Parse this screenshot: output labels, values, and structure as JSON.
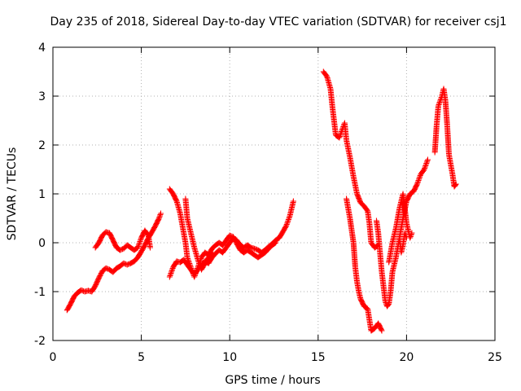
{
  "chart_data": {
    "type": "scatter",
    "title": "Day 235 of 2018, Sidereal Day-to-day VTEC variation (SDTVAR) for receiver csj1",
    "xlabel": "GPS time / hours",
    "ylabel": "SDTVAR / TECUs",
    "xlim": [
      0,
      25
    ],
    "ylim": [
      -2,
      4
    ],
    "xticks": [
      0,
      5,
      10,
      15,
      20,
      25
    ],
    "yticks": [
      -2,
      -1,
      0,
      1,
      2,
      3,
      4
    ],
    "grid": true,
    "marker": "+",
    "series": [
      {
        "name": "SDTVAR",
        "color": "#ff0000",
        "segments": [
          [
            [
              0.8,
              -1.38
            ],
            [
              1.0,
              -1.25
            ],
            [
              1.2,
              -1.1
            ],
            [
              1.4,
              -1.02
            ],
            [
              1.6,
              -0.97
            ],
            [
              1.8,
              -1.0
            ],
            [
              2.0,
              -0.98
            ],
            [
              2.2,
              -1.0
            ],
            [
              2.4,
              -0.88
            ],
            [
              2.6,
              -0.72
            ],
            [
              2.8,
              -0.58
            ],
            [
              3.0,
              -0.52
            ],
            [
              3.2,
              -0.55
            ],
            [
              3.4,
              -0.6
            ],
            [
              3.6,
              -0.52
            ],
            [
              3.8,
              -0.48
            ],
            [
              4.0,
              -0.42
            ],
            [
              4.2,
              -0.45
            ],
            [
              4.4,
              -0.42
            ],
            [
              4.6,
              -0.38
            ],
            [
              4.8,
              -0.3
            ],
            [
              5.0,
              -0.18
            ],
            [
              5.2,
              -0.05
            ],
            [
              5.4,
              0.1
            ],
            [
              5.6,
              0.22
            ],
            [
              5.8,
              0.35
            ],
            [
              6.0,
              0.5
            ],
            [
              6.1,
              0.6
            ]
          ],
          [
            [
              2.4,
              -0.1
            ],
            [
              2.6,
              0.0
            ],
            [
              2.8,
              0.15
            ],
            [
              3.0,
              0.22
            ],
            [
              3.2,
              0.2
            ],
            [
              3.4,
              0.05
            ],
            [
              3.6,
              -0.1
            ],
            [
              3.8,
              -0.15
            ],
            [
              4.0,
              -0.12
            ],
            [
              4.2,
              -0.05
            ],
            [
              4.4,
              -0.1
            ],
            [
              4.6,
              -0.15
            ],
            [
              4.8,
              -0.1
            ],
            [
              5.0,
              0.1
            ],
            [
              5.2,
              0.25
            ],
            [
              5.4,
              0.15
            ],
            [
              5.5,
              -0.1
            ]
          ],
          [
            [
              6.6,
              -0.7
            ],
            [
              6.8,
              -0.5
            ],
            [
              7.0,
              -0.38
            ],
            [
              7.2,
              -0.4
            ],
            [
              7.4,
              -0.35
            ],
            [
              7.6,
              -0.45
            ],
            [
              7.8,
              -0.55
            ],
            [
              8.0,
              -0.65
            ],
            [
              8.2,
              -0.55
            ],
            [
              8.4,
              -0.45
            ],
            [
              8.6,
              -0.38
            ],
            [
              8.8,
              -0.42
            ],
            [
              9.0,
              -0.3
            ],
            [
              9.2,
              -0.22
            ],
            [
              9.4,
              -0.15
            ],
            [
              9.6,
              -0.2
            ],
            [
              9.8,
              -0.1
            ],
            [
              10.0,
              0.0
            ],
            [
              10.2,
              0.1
            ],
            [
              10.4,
              0.05
            ],
            [
              10.6,
              -0.05
            ],
            [
              10.8,
              -0.1
            ],
            [
              11.0,
              -0.05
            ],
            [
              11.2,
              -0.1
            ],
            [
              11.4,
              -0.12
            ],
            [
              11.6,
              -0.15
            ],
            [
              11.8,
              -0.2
            ],
            [
              12.0,
              -0.15
            ],
            [
              12.2,
              -0.08
            ],
            [
              12.4,
              -0.02
            ],
            [
              12.6,
              0.05
            ],
            [
              12.8,
              0.1
            ],
            [
              13.0,
              0.22
            ],
            [
              13.2,
              0.35
            ],
            [
              13.4,
              0.55
            ],
            [
              13.6,
              0.85
            ]
          ],
          [
            [
              6.6,
              1.1
            ],
            [
              6.8,
              1.0
            ],
            [
              7.0,
              0.85
            ],
            [
              7.2,
              0.6
            ],
            [
              7.4,
              0.2
            ],
            [
              7.5,
              0.0
            ],
            [
              7.6,
              -0.3
            ],
            [
              7.8,
              -0.5
            ],
            [
              8.0,
              -0.7
            ],
            [
              8.2,
              -0.5
            ],
            [
              8.4,
              -0.3
            ],
            [
              8.6,
              -0.2
            ],
            [
              8.8,
              -0.25
            ],
            [
              9.0,
              -0.12
            ],
            [
              9.2,
              -0.05
            ],
            [
              9.4,
              0.0
            ],
            [
              9.6,
              -0.05
            ],
            [
              9.8,
              0.05
            ],
            [
              10.0,
              0.15
            ],
            [
              10.2,
              0.12
            ],
            [
              10.4,
              -0.02
            ],
            [
              10.6,
              -0.15
            ],
            [
              10.8,
              -0.2
            ],
            [
              11.0,
              -0.15
            ],
            [
              11.2,
              -0.2
            ],
            [
              11.4,
              -0.25
            ],
            [
              11.6,
              -0.3
            ],
            [
              11.8,
              -0.25
            ],
            [
              12.0,
              -0.2
            ],
            [
              12.2,
              -0.12
            ],
            [
              12.4,
              -0.05
            ],
            [
              12.6,
              0.0
            ]
          ],
          [
            [
              7.5,
              0.9
            ],
            [
              7.6,
              0.5
            ],
            [
              7.8,
              0.2
            ],
            [
              8.0,
              -0.1
            ],
            [
              8.2,
              -0.35
            ],
            [
              8.4,
              -0.55
            ],
            [
              8.6,
              -0.42
            ],
            [
              8.8,
              -0.3
            ],
            [
              9.0,
              -0.2
            ]
          ],
          [
            [
              15.3,
              3.5
            ],
            [
              15.5,
              3.4
            ],
            [
              15.7,
              3.15
            ],
            [
              15.8,
              2.8
            ],
            [
              15.9,
              2.5
            ],
            [
              16.0,
              2.2
            ],
            [
              16.2,
              2.15
            ],
            [
              16.4,
              2.35
            ],
            [
              16.5,
              2.45
            ],
            [
              16.6,
              2.1
            ],
            [
              16.8,
              1.75
            ],
            [
              17.0,
              1.35
            ],
            [
              17.2,
              1.0
            ],
            [
              17.4,
              0.82
            ],
            [
              17.6,
              0.75
            ],
            [
              17.8,
              0.65
            ],
            [
              17.9,
              0.4
            ],
            [
              18.0,
              0.0
            ],
            [
              18.2,
              -0.1
            ],
            [
              18.4,
              -0.05
            ]
          ],
          [
            [
              16.6,
              0.9
            ],
            [
              16.8,
              0.5
            ],
            [
              17.0,
              0.0
            ],
            [
              17.1,
              -0.5
            ],
            [
              17.2,
              -0.8
            ],
            [
              17.3,
              -1.0
            ],
            [
              17.4,
              -1.15
            ],
            [
              17.6,
              -1.3
            ],
            [
              17.8,
              -1.35
            ],
            [
              18.0,
              -1.8
            ],
            [
              18.2,
              -1.75
            ],
            [
              18.4,
              -1.65
            ],
            [
              18.6,
              -1.8
            ]
          ],
          [
            [
              18.3,
              0.45
            ],
            [
              18.4,
              0.2
            ],
            [
              18.5,
              -0.2
            ],
            [
              18.6,
              -0.6
            ],
            [
              18.7,
              -0.9
            ],
            [
              18.8,
              -1.2
            ],
            [
              18.9,
              -1.3
            ],
            [
              19.0,
              -1.25
            ],
            [
              19.1,
              -1.0
            ],
            [
              19.2,
              -0.6
            ],
            [
              19.4,
              -0.3
            ],
            [
              19.6,
              0.1
            ],
            [
              19.8,
              0.5
            ],
            [
              20.0,
              0.85
            ],
            [
              20.2,
              1.0
            ],
            [
              20.4,
              1.05
            ],
            [
              20.6,
              1.2
            ],
            [
              20.8,
              1.4
            ],
            [
              21.0,
              1.5
            ],
            [
              21.2,
              1.7
            ]
          ],
          [
            [
              19.0,
              -0.4
            ],
            [
              19.2,
              0.0
            ],
            [
              19.4,
              0.3
            ],
            [
              19.6,
              0.7
            ],
            [
              19.8,
              1.0
            ],
            [
              20.0,
              0.4
            ],
            [
              20.2,
              0.1
            ],
            [
              20.3,
              0.2
            ]
          ],
          [
            [
              19.6,
              0.1
            ],
            [
              19.7,
              -0.2
            ],
            [
              19.8,
              -0.05
            ],
            [
              19.9,
              0.2
            ],
            [
              20.0,
              0.1
            ]
          ],
          [
            [
              21.6,
              1.85
            ],
            [
              21.7,
              2.4
            ],
            [
              21.8,
              2.8
            ],
            [
              22.0,
              3.0
            ],
            [
              22.1,
              3.15
            ],
            [
              22.2,
              2.9
            ],
            [
              22.3,
              2.4
            ],
            [
              22.4,
              1.8
            ],
            [
              22.5,
              1.6
            ],
            [
              22.6,
              1.4
            ],
            [
              22.7,
              1.15
            ],
            [
              22.8,
              1.2
            ]
          ]
        ]
      }
    ]
  }
}
